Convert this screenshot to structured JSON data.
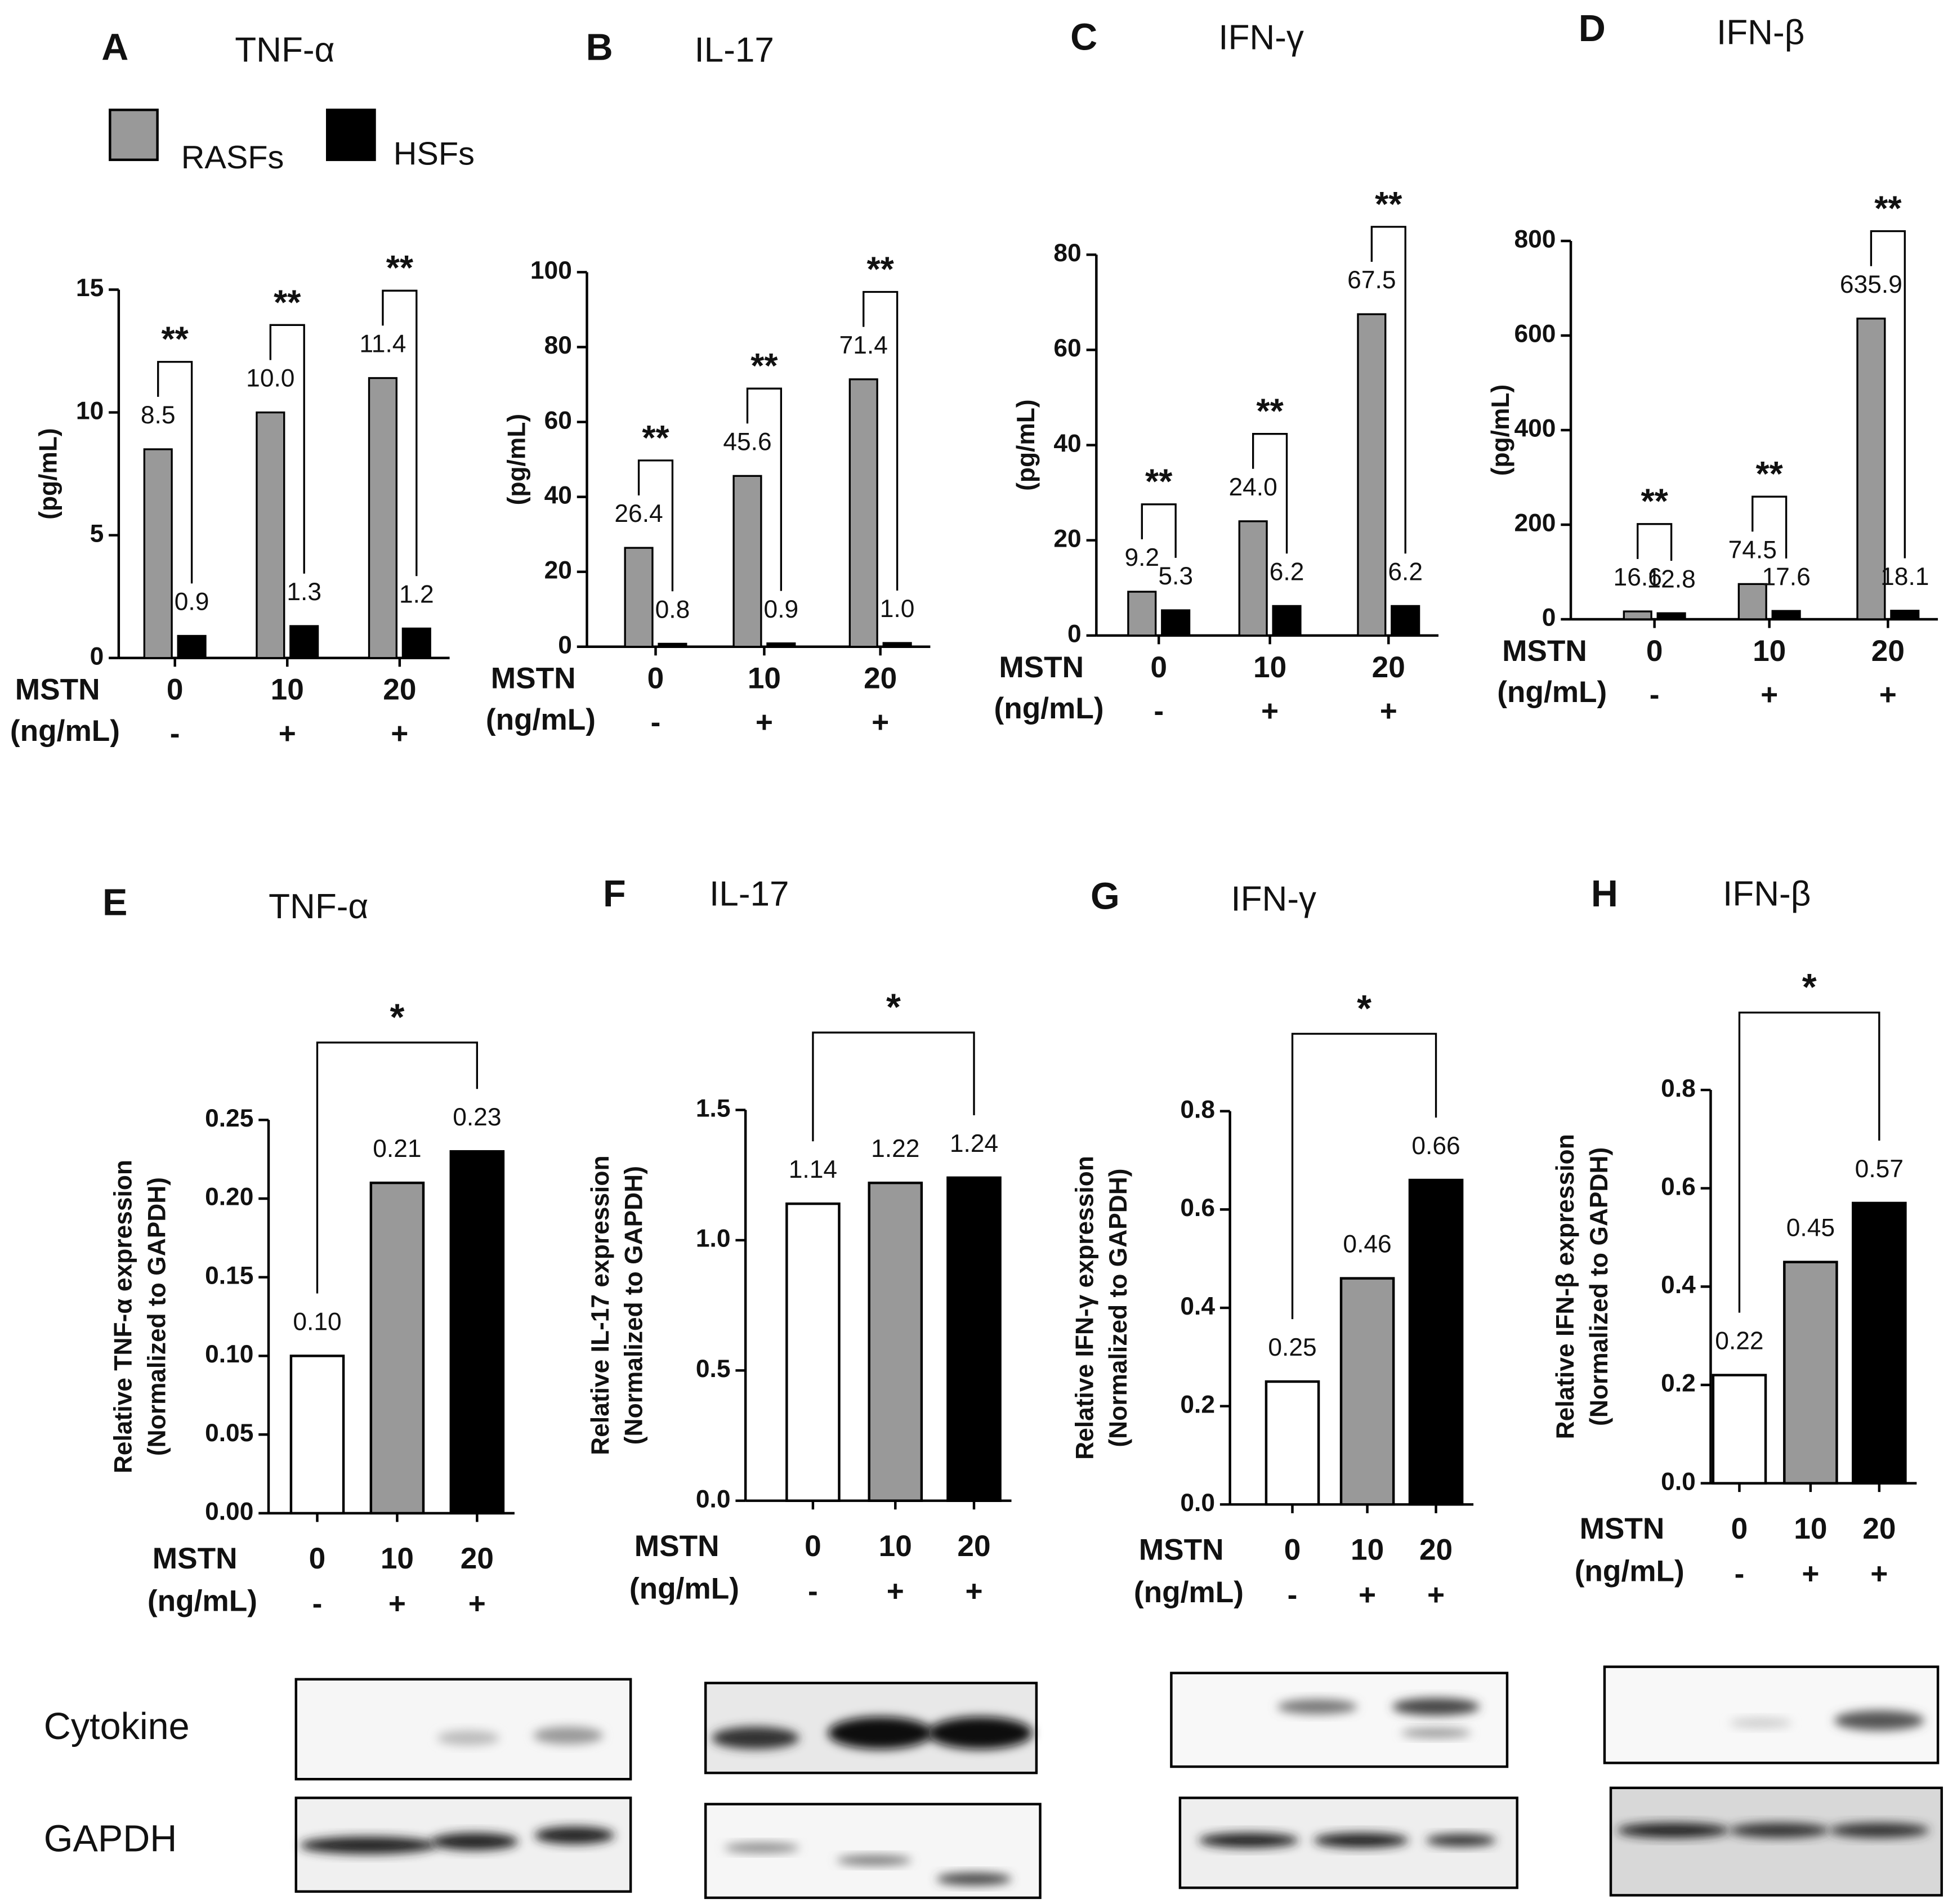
{
  "chart_data": [
    {
      "type": "bar",
      "panel": "A",
      "title": "TNF-α",
      "ylabel": [
        "(pg/mL)"
      ],
      "x_label": [
        "MSTN",
        "(ng/mL)"
      ],
      "categories": [
        "0",
        "10",
        "20"
      ],
      "treatment": [
        "-",
        "+",
        "+"
      ],
      "legend": true,
      "series": [
        {
          "name": "RASFs",
          "color": "#999999",
          "values": [
            8.5,
            10.0,
            11.4
          ],
          "value_labels": [
            "8.5",
            "10.0",
            "11.4"
          ]
        },
        {
          "name": "HSFs",
          "color": "#000000",
          "values": [
            0.9,
            1.3,
            1.2
          ]
        }
      ],
      "significance": [
        "**",
        "**",
        "**"
      ],
      "ylim": [
        0,
        15
      ],
      "yticks": [
        0,
        5,
        10,
        15
      ]
    },
    {
      "type": "bar",
      "panel": "B",
      "title": "IL-17",
      "ylabel": [
        "(pg/mL)"
      ],
      "x_label": [
        "MSTN",
        "(ng/mL)"
      ],
      "categories": [
        "0",
        "10",
        "20"
      ],
      "treatment": [
        "-",
        "+",
        "+"
      ],
      "series": [
        {
          "color": "#999999",
          "values": [
            26.4,
            45.6,
            71.4
          ]
        },
        {
          "color": "#000000",
          "values": [
            0.8,
            0.9,
            1.0
          ],
          "value_labels": [
            "0.8",
            "0.9",
            "1.0"
          ]
        }
      ],
      "significance": [
        "**",
        "**",
        "**"
      ],
      "ylim": [
        0,
        100
      ],
      "yticks": [
        0,
        20,
        40,
        60,
        80,
        100
      ]
    },
    {
      "type": "bar",
      "panel": "C",
      "title": "IFN-γ",
      "ylabel": [
        "(pg/mL)"
      ],
      "x_label": [
        "MSTN",
        "(ng/mL)"
      ],
      "categories": [
        "0",
        "10",
        "20"
      ],
      "treatment": [
        "-",
        "+",
        "+"
      ],
      "series": [
        {
          "color": "#999999",
          "values": [
            9.2,
            24.0,
            67.5
          ],
          "value_labels": [
            "9.2",
            "24.0",
            "67.5"
          ]
        },
        {
          "color": "#000000",
          "values": [
            5.3,
            6.2,
            6.2
          ]
        }
      ],
      "significance": [
        "**",
        "**",
        "**"
      ],
      "ylim": [
        0,
        80
      ],
      "yticks": [
        0,
        20,
        40,
        60,
        80
      ]
    },
    {
      "type": "bar",
      "panel": "D",
      "title": "IFN-β",
      "ylabel": [
        "(pg/mL)"
      ],
      "x_label": [
        "MSTN",
        "(ng/mL)"
      ],
      "categories": [
        "0",
        "10",
        "20"
      ],
      "treatment": [
        "-",
        "+",
        "+"
      ],
      "series": [
        {
          "color": "#999999",
          "values": [
            16.6,
            74.5,
            635.9
          ]
        },
        {
          "color": "#000000",
          "values": [
            12.8,
            17.6,
            18.1
          ]
        }
      ],
      "significance": [
        "**",
        "**",
        "**"
      ],
      "ylim": [
        0,
        800
      ],
      "yticks": [
        0,
        200,
        400,
        600,
        800
      ]
    },
    {
      "type": "bar",
      "panel": "E",
      "title": "TNF-α",
      "ylabel": [
        "Relative TNF-α  expression",
        "(Normalized to GAPDH)"
      ],
      "x_label": [
        "MSTN",
        "(ng/mL)"
      ],
      "categories": [
        "0",
        "10",
        "20"
      ],
      "treatment": [
        "-",
        "+",
        "+"
      ],
      "values": [
        0.1,
        0.21,
        0.23
      ],
      "value_labels": [
        "0.10",
        "0.21",
        "0.23"
      ],
      "colors": [
        "#ffffff",
        "#999999",
        "#000000"
      ],
      "significance": "*",
      "ylim": [
        0,
        0.25
      ],
      "yticks": [
        {
          "value": 0,
          "label": "0.00"
        },
        0.05,
        {
          "value": 0.1,
          "label": "0.10"
        },
        0.15,
        {
          "value": 0.2,
          "label": "0.20"
        },
        0.25
      ]
    },
    {
      "type": "bar",
      "panel": "F",
      "title": "IL-17",
      "ylabel": [
        "Relative IL-17 expression",
        "(Normalized to GAPDH)"
      ],
      "x_label": [
        "MSTN",
        "(ng/mL)"
      ],
      "categories": [
        "0",
        "10",
        "20"
      ],
      "treatment": [
        "-",
        "+",
        "+"
      ],
      "values": [
        1.14,
        1.22,
        1.24
      ],
      "colors": [
        "#ffffff",
        "#999999",
        "#000000"
      ],
      "significance": "*",
      "ylim": [
        0,
        1.5
      ],
      "yticks": [
        {
          "value": 0,
          "label": "0.0"
        },
        0.5,
        {
          "value": 1,
          "label": "1.0"
        },
        1.5
      ]
    },
    {
      "type": "bar",
      "panel": "G",
      "title": "IFN-γ",
      "ylabel": [
        "Relative IFN-γ expression",
        "(Normalized to GAPDH)"
      ],
      "x_label": [
        "MSTN",
        "(ng/mL)"
      ],
      "categories": [
        "0",
        "10",
        "20"
      ],
      "treatment": [
        "-",
        "+",
        "+"
      ],
      "values": [
        0.25,
        0.46,
        0.66
      ],
      "colors": [
        "#ffffff",
        "#999999",
        "#000000"
      ],
      "significance": "*",
      "ylim": [
        0,
        0.8
      ],
      "yticks": [
        {
          "value": 0,
          "label": "0.0"
        },
        0.2,
        0.4,
        0.6,
        0.8
      ]
    },
    {
      "type": "bar",
      "panel": "H",
      "title": "IFN-β",
      "ylabel": [
        "Relative IFN-β expression",
        "(Normalized to GAPDH)"
      ],
      "x_label": [
        "MSTN",
        "(ng/mL)"
      ],
      "categories": [
        "0",
        "10",
        "20"
      ],
      "treatment": [
        "-",
        "+",
        "+"
      ],
      "values": [
        0.22,
        0.45,
        0.57
      ],
      "colors": [
        "#ffffff",
        "#999999",
        "#000000"
      ],
      "significance": "*",
      "ylim": [
        0,
        0.8
      ],
      "yticks": [
        {
          "value": 0,
          "label": "0.0"
        },
        0.2,
        0.4,
        0.6,
        0.8
      ]
    }
  ],
  "blot_labels": [
    "Cytokine",
    "GAPDH"
  ]
}
